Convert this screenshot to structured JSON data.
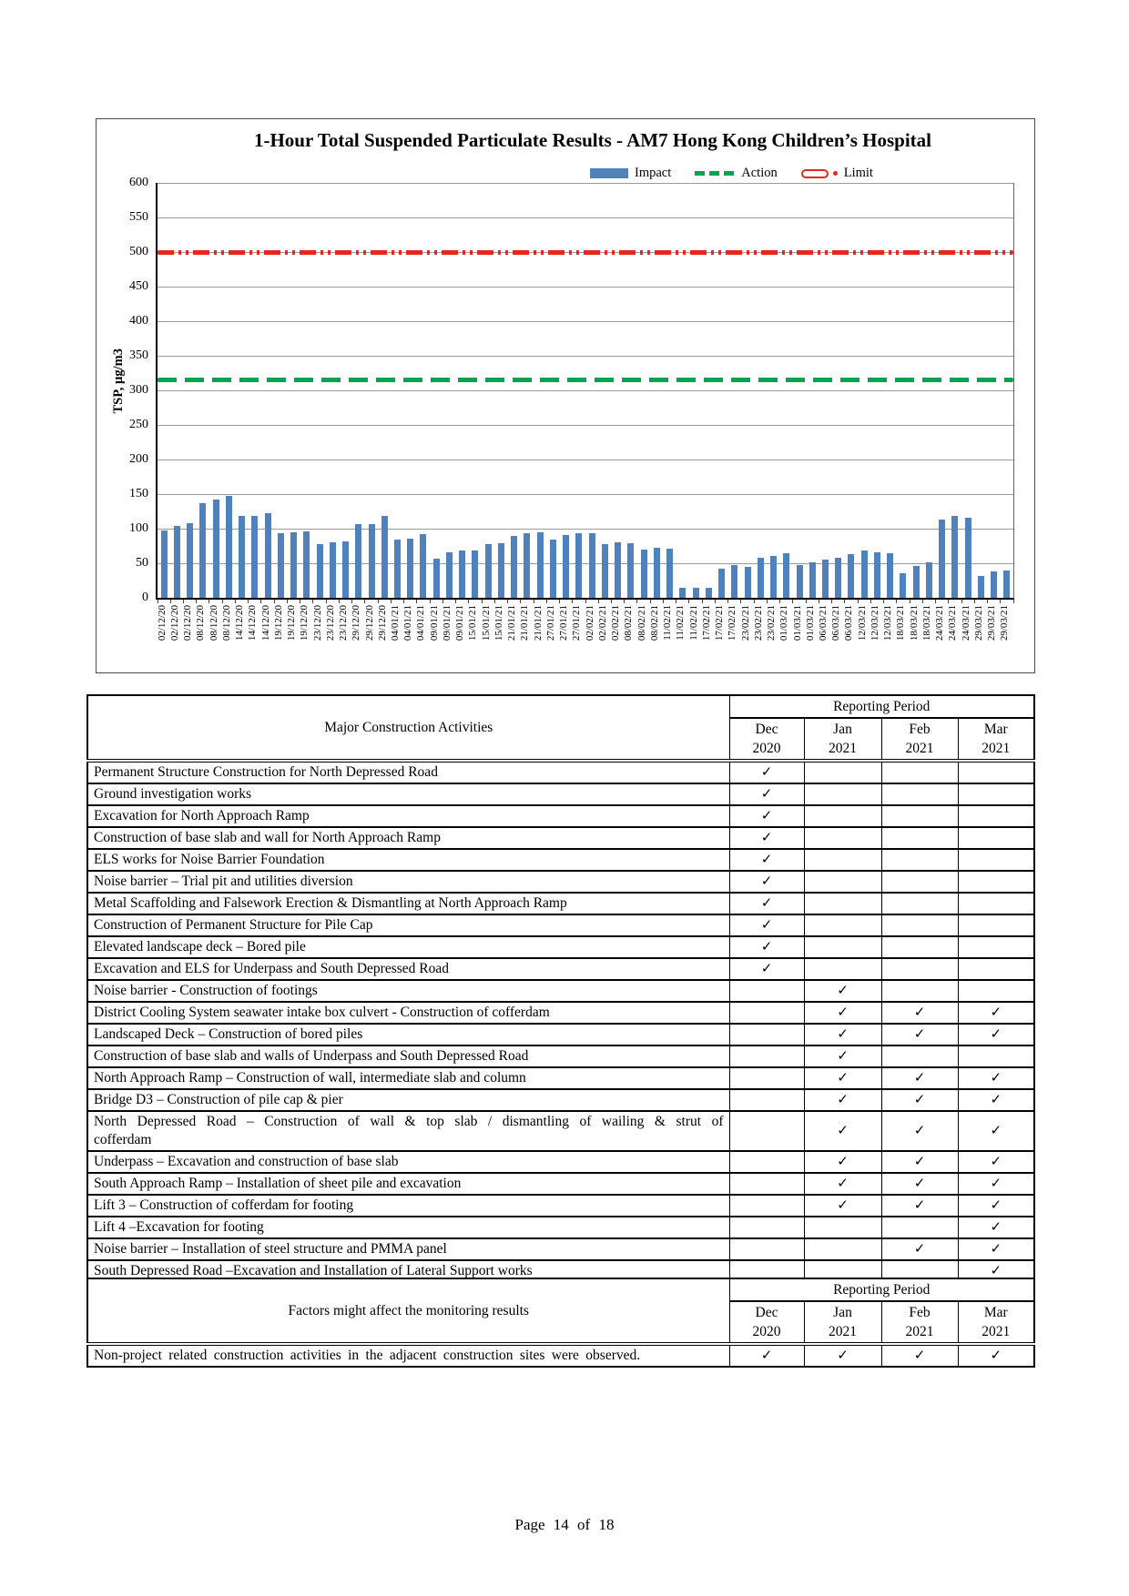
{
  "page": {
    "footer": "Page 14 of 18"
  },
  "chart_data": {
    "type": "bar",
    "title": "1-Hour Total Suspended Particulate Results - AM7 Hong Kong Children’s Hospital",
    "ylabel": "TSP, µg/m3",
    "ylim": [
      0,
      600
    ],
    "ytick_step": 50,
    "legend": [
      "Impact",
      "Action",
      "Limit"
    ],
    "action_level": 315,
    "limit_level": 500,
    "colors": {
      "impact": "#4F81BD",
      "action": "#00A550",
      "limit": "#E8251F",
      "gridline": "#9a9a9a"
    },
    "categories": [
      "02/12/20",
      "02/12/20",
      "02/12/20",
      "08/12/20",
      "08/12/20",
      "08/12/20",
      "14/12/20",
      "14/12/20",
      "14/12/20",
      "19/12/20",
      "19/12/20",
      "19/12/20",
      "23/12/20",
      "23/12/20",
      "23/12/20",
      "29/12/20",
      "29/12/20",
      "29/12/20",
      "04/01/21",
      "04/01/21",
      "04/01/21",
      "09/01/21",
      "09/01/21",
      "09/01/21",
      "15/01/21",
      "15/01/21",
      "15/01/21",
      "21/01/21",
      "21/01/21",
      "21/01/21",
      "27/01/21",
      "27/01/21",
      "27/01/21",
      "02/02/21",
      "02/02/21",
      "02/02/21",
      "08/02/21",
      "08/02/21",
      "08/02/21",
      "11/02/21",
      "11/02/21",
      "11/02/21",
      "17/02/21",
      "17/02/21",
      "17/02/21",
      "23/02/21",
      "23/02/21",
      "23/02/21",
      "01/03/21",
      "01/03/21",
      "01/03/21",
      "06/03/21",
      "06/03/21",
      "06/03/21",
      "12/03/21",
      "12/03/21",
      "12/03/21",
      "18/03/21",
      "18/03/21",
      "18/03/21",
      "24/03/21",
      "24/03/21",
      "24/03/21",
      "29/03/21",
      "29/03/21",
      "29/03/21"
    ],
    "values": [
      98,
      104,
      108,
      137,
      142,
      147,
      118,
      118,
      123,
      93,
      95,
      96,
      77,
      80,
      81,
      107,
      107,
      118,
      84,
      86,
      92,
      57,
      66,
      68,
      69,
      78,
      79,
      89,
      94,
      95,
      84,
      91,
      94,
      94,
      77,
      80,
      79,
      70,
      72,
      71,
      15,
      14,
      14,
      42,
      48,
      45,
      58,
      60,
      65,
      48,
      51,
      55,
      58,
      63,
      68,
      66,
      65,
      36,
      46,
      51,
      113,
      119,
      116,
      32,
      38,
      39
    ]
  },
  "activities_table": {
    "title": "Major Construction Activities",
    "group_header": "Reporting Period",
    "check_mark": "✓",
    "periods": [
      {
        "month": "Dec",
        "year": "2020"
      },
      {
        "month": "Jan",
        "year": "2021"
      },
      {
        "month": "Feb",
        "year": "2021"
      },
      {
        "month": "Mar",
        "year": "2021"
      }
    ],
    "rows": [
      {
        "label": "Permanent Structure Construction for North Depressed Road",
        "checks": [
          1,
          0,
          0,
          0
        ]
      },
      {
        "label": "Ground investigation works",
        "checks": [
          1,
          0,
          0,
          0
        ]
      },
      {
        "label": "Excavation for North Approach Ramp",
        "checks": [
          1,
          0,
          0,
          0
        ]
      },
      {
        "label": "Construction of base slab and wall for North Approach Ramp",
        "checks": [
          1,
          0,
          0,
          0
        ]
      },
      {
        "label": "ELS works for Noise Barrier Foundation",
        "checks": [
          1,
          0,
          0,
          0
        ]
      },
      {
        "label": "Noise barrier – Trial pit and utilities diversion",
        "checks": [
          1,
          0,
          0,
          0
        ]
      },
      {
        "label": "Metal Scaffolding and Falsework Erection & Dismantling at North Approach Ramp",
        "checks": [
          1,
          0,
          0,
          0
        ]
      },
      {
        "label": "Construction of Permanent Structure for Pile Cap",
        "checks": [
          1,
          0,
          0,
          0
        ]
      },
      {
        "label": "Elevated landscape deck – Bored pile",
        "checks": [
          1,
          0,
          0,
          0
        ]
      },
      {
        "label": "Excavation and ELS for Underpass and South Depressed Road",
        "checks": [
          1,
          0,
          0,
          0
        ]
      },
      {
        "label": "Noise barrier - Construction of footings",
        "checks": [
          0,
          1,
          0,
          0
        ]
      },
      {
        "label": "District Cooling System seawater intake box culvert - Construction of cofferdam",
        "checks": [
          0,
          1,
          1,
          1
        ]
      },
      {
        "label": "Landscaped Deck – Construction of bored piles",
        "checks": [
          0,
          1,
          1,
          1
        ]
      },
      {
        "label": "Construction of base slab and walls of Underpass and South Depressed Road",
        "checks": [
          0,
          1,
          0,
          0
        ]
      },
      {
        "label": "North Approach Ramp – Construction of wall, intermediate slab and column",
        "checks": [
          0,
          1,
          1,
          1
        ]
      },
      {
        "label": "Bridge D3 – Construction of pile cap & pier",
        "checks": [
          0,
          1,
          1,
          1
        ]
      },
      {
        "label": "North Depressed Road – Construction of wall & top slab / dismantling of wailing & strut of cofferdam",
        "checks": [
          0,
          1,
          1,
          1
        ]
      },
      {
        "label": "Underpass – Excavation and construction of base slab",
        "checks": [
          0,
          1,
          1,
          1
        ]
      },
      {
        "label": "South Approach Ramp – Installation of sheet pile and excavation",
        "checks": [
          0,
          1,
          1,
          1
        ]
      },
      {
        "label": "Lift 3 – Construction of cofferdam for footing",
        "checks": [
          0,
          1,
          1,
          1
        ]
      },
      {
        "label": "Lift 4 –Excavation for footing",
        "checks": [
          0,
          0,
          0,
          1
        ]
      },
      {
        "label": "Noise barrier – Installation of steel structure and PMMA panel",
        "checks": [
          0,
          0,
          1,
          1
        ]
      },
      {
        "label": "South Depressed Road –Excavation and Installation of Lateral Support works",
        "checks": [
          0,
          0,
          0,
          1
        ]
      }
    ]
  },
  "factors_table": {
    "title": "Factors might affect the monitoring results",
    "group_header": "Reporting Period",
    "check_mark": "✓",
    "periods": [
      {
        "month": "Dec",
        "year": "2020"
      },
      {
        "month": "Jan",
        "year": "2021"
      },
      {
        "month": "Feb",
        "year": "2021"
      },
      {
        "month": "Mar",
        "year": "2021"
      }
    ],
    "rows": [
      {
        "label": "Non-project related construction activities in the adjacent construction sites were observed.",
        "checks": [
          1,
          1,
          1,
          1
        ]
      }
    ]
  }
}
